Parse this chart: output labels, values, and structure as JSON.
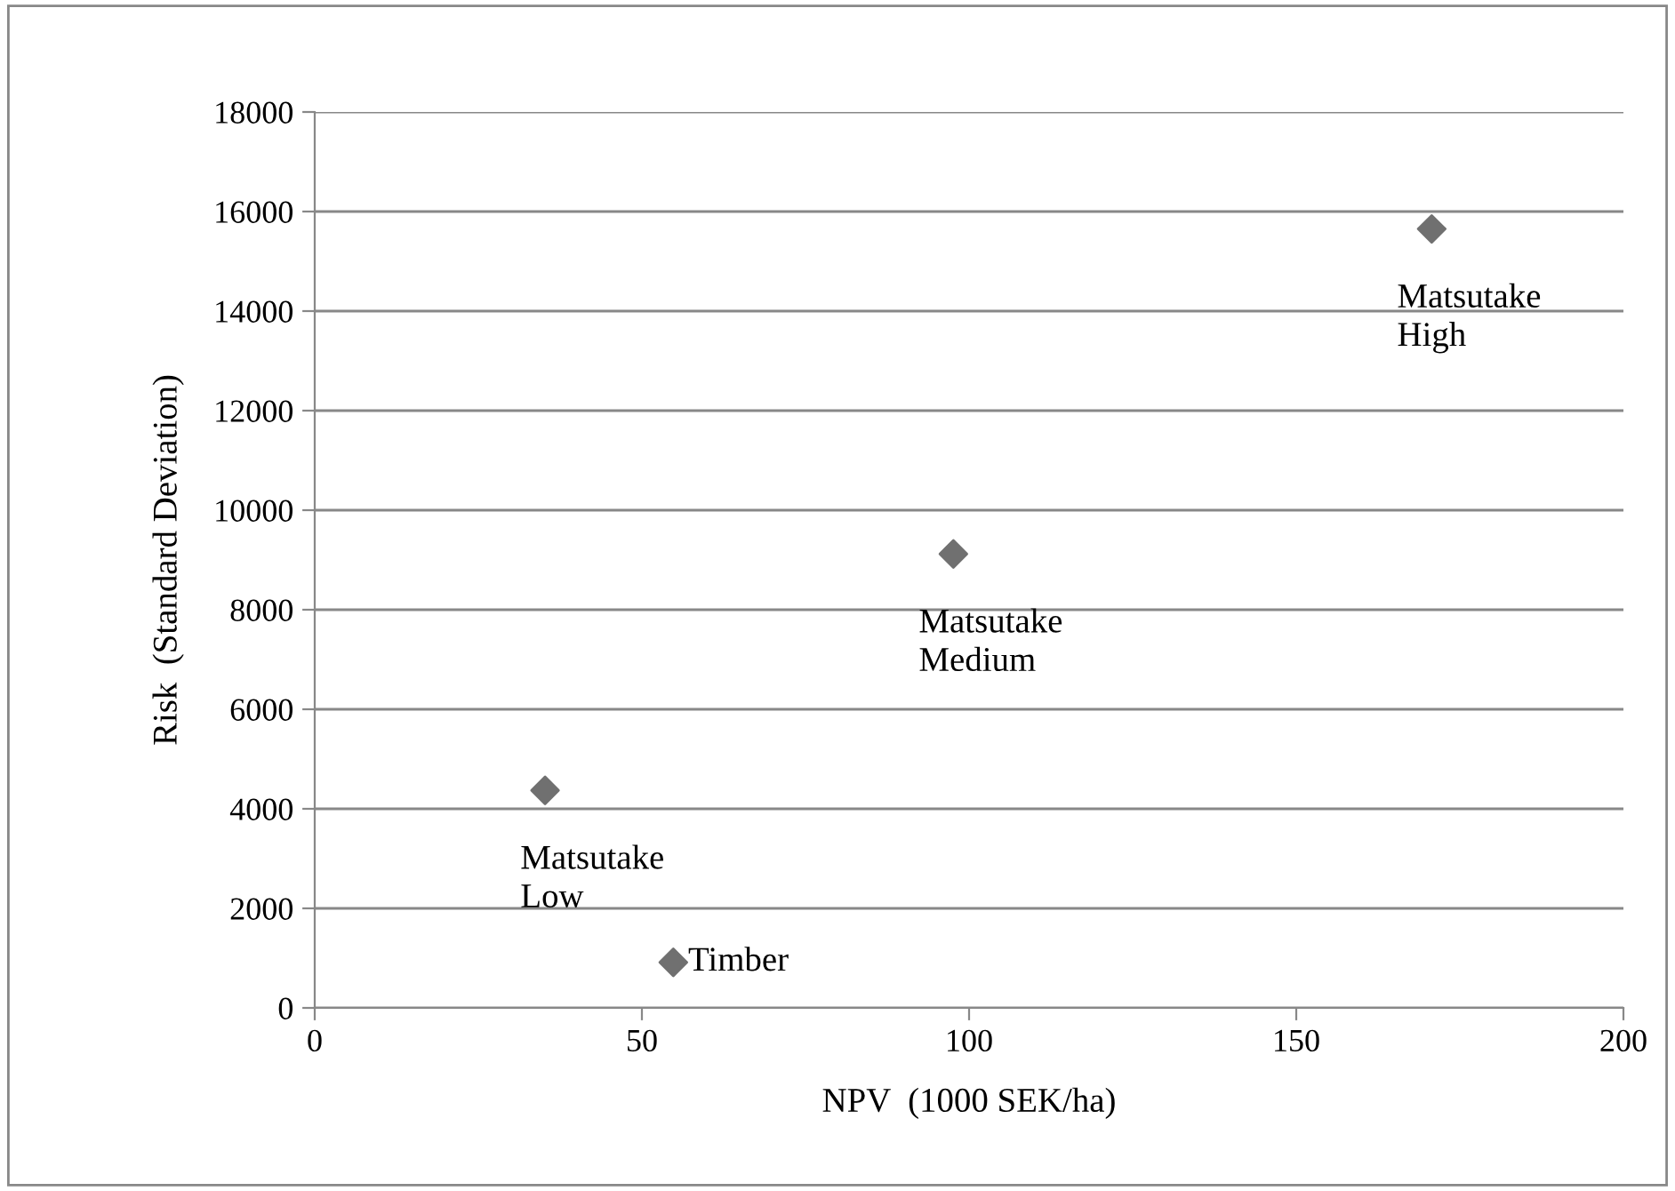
{
  "chart_data": {
    "type": "scatter",
    "xlabel": "NPV  (1000 SEK/ha)",
    "ylabel": "Risk  (Standard Deviation)",
    "x": [
      35.2,
      54.8,
      97.6,
      170.7
    ],
    "series": [
      {
        "color": "#707070",
        "values": [
          4370,
          915,
          9120,
          15650
        ]
      }
    ],
    "marker": "diamond",
    "grid": "y",
    "xlim": [
      0,
      200
    ],
    "xticks": [
      0,
      50,
      100,
      150,
      200
    ],
    "ylim": [
      0,
      18000
    ],
    "yticks": [
      0,
      2000,
      4000,
      6000,
      8000,
      10000,
      12000,
      14000,
      16000,
      18000
    ],
    "annotations": [
      {
        "text": "Matsutake\nLow",
        "x": 35.2,
        "y": 4370
      },
      {
        "text": "Timber",
        "x": 54.8,
        "y": 915
      },
      {
        "text": "Matsutake\nMedium",
        "x": 97.6,
        "y": 9120
      },
      {
        "text": "Matsutake\nHigh",
        "x": 170.7,
        "y": 15650
      }
    ]
  }
}
